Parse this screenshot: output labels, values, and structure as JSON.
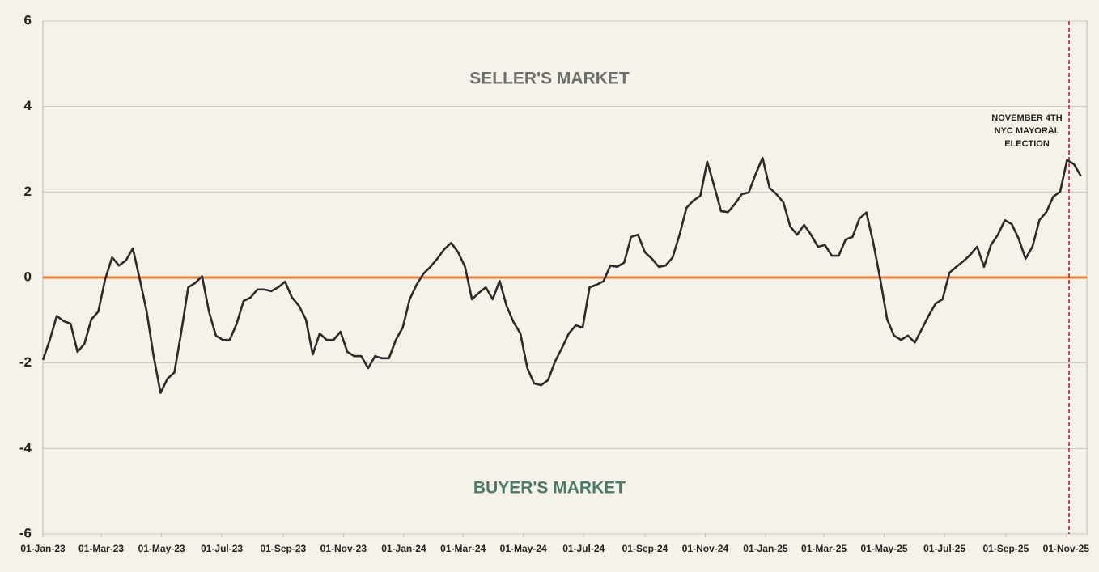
{
  "chart_data": {
    "type": "line",
    "series": [
      {
        "color": "#2b2b2b",
        "values": [
          -1.93,
          -1.46,
          -0.9,
          -1.02,
          -1.08,
          -1.74,
          -1.55,
          -0.98,
          -0.8,
          -0.04,
          0.47,
          0.28,
          0.4,
          0.68,
          -0.04,
          -0.8,
          -1.84,
          -2.7,
          -2.37,
          -2.22,
          -1.27,
          -0.23,
          -0.13,
          0.03,
          -0.8,
          -1.36,
          -1.46,
          -1.46,
          -1.08,
          -0.55,
          -0.47,
          -0.28,
          -0.28,
          -0.32,
          -0.23,
          -0.1,
          -0.47,
          -0.66,
          -0.98,
          -1.8,
          -1.31,
          -1.46,
          -1.46,
          -1.27,
          -1.74,
          -1.84,
          -1.84,
          -2.12,
          -1.84,
          -1.89,
          -1.89,
          -1.46,
          -1.17,
          -0.51,
          -0.17,
          0.09,
          0.25,
          0.44,
          0.66,
          0.81,
          0.59,
          0.25,
          -0.51,
          -0.36,
          -0.23,
          -0.51,
          -0.08,
          -0.66,
          -1.04,
          -1.31,
          -2.12,
          -2.48,
          -2.52,
          -2.4,
          -1.97,
          -1.65,
          -1.31,
          -1.12,
          -1.17,
          -0.23,
          -0.17,
          -0.09,
          0.28,
          0.25,
          0.35,
          0.95,
          1.0,
          0.59,
          0.44,
          0.25,
          0.28,
          0.47,
          1.0,
          1.63,
          1.8,
          1.91,
          2.71,
          2.14,
          1.55,
          1.53,
          1.72,
          1.95,
          1.99,
          2.42,
          2.8,
          2.1,
          1.95,
          1.76,
          1.19,
          1.0,
          1.23,
          1.0,
          0.72,
          0.76,
          0.51,
          0.51,
          0.89,
          0.95,
          1.38,
          1.52,
          0.81,
          -0.04,
          -0.98,
          -1.36,
          -1.46,
          -1.36,
          -1.52,
          -1.21,
          -0.89,
          -0.61,
          -0.51,
          0.11,
          0.25,
          0.38,
          0.53,
          0.72,
          0.25,
          0.76,
          1.0,
          1.34,
          1.25,
          0.91,
          0.44,
          0.72,
          1.34,
          1.53,
          1.89,
          2.01,
          2.75,
          2.65,
          2.37
        ]
      }
    ],
    "x": [
      "2023-01-01",
      "2023-01-08",
      "2023-01-15",
      "2023-01-22",
      "2023-01-29",
      "2023-02-05",
      "2023-02-12",
      "2023-02-19",
      "2023-02-26",
      "2023-03-05",
      "2023-03-12",
      "2023-03-19",
      "2023-03-26",
      "2023-04-02",
      "2023-04-09",
      "2023-04-16",
      "2023-04-23",
      "2023-04-30",
      "2023-05-07",
      "2023-05-14",
      "2023-05-21",
      "2023-05-28",
      "2023-06-04",
      "2023-06-11",
      "2023-06-18",
      "2023-06-25",
      "2023-07-02",
      "2023-07-09",
      "2023-07-16",
      "2023-07-23",
      "2023-07-30",
      "2023-08-06",
      "2023-08-13",
      "2023-08-20",
      "2023-08-27",
      "2023-09-03",
      "2023-09-10",
      "2023-09-17",
      "2023-09-24",
      "2023-10-01",
      "2023-10-08",
      "2023-10-15",
      "2023-10-22",
      "2023-10-29",
      "2023-11-05",
      "2023-11-12",
      "2023-11-19",
      "2023-11-26",
      "2023-12-03",
      "2023-12-10",
      "2023-12-17",
      "2023-12-24",
      "2023-12-31",
      "2024-01-07",
      "2024-01-14",
      "2024-01-21",
      "2024-01-28",
      "2024-02-04",
      "2024-02-11",
      "2024-02-18",
      "2024-02-25",
      "2024-03-03",
      "2024-03-10",
      "2024-03-17",
      "2024-03-24",
      "2024-03-31",
      "2024-04-07",
      "2024-04-14",
      "2024-04-21",
      "2024-04-28",
      "2024-05-05",
      "2024-05-12",
      "2024-05-19",
      "2024-05-26",
      "2024-06-02",
      "2024-06-09",
      "2024-06-16",
      "2024-06-23",
      "2024-06-30",
      "2024-07-07",
      "2024-07-14",
      "2024-07-21",
      "2024-07-28",
      "2024-08-04",
      "2024-08-11",
      "2024-08-18",
      "2024-08-25",
      "2024-09-01",
      "2024-09-08",
      "2024-09-15",
      "2024-09-22",
      "2024-09-29",
      "2024-10-06",
      "2024-10-13",
      "2024-10-20",
      "2024-10-27",
      "2024-11-03",
      "2024-11-10",
      "2024-11-17",
      "2024-11-24",
      "2024-12-01",
      "2024-12-08",
      "2024-12-15",
      "2024-12-22",
      "2024-12-29",
      "2025-01-05",
      "2025-01-12",
      "2025-01-19",
      "2025-01-26",
      "2025-02-02",
      "2025-02-09",
      "2025-02-16",
      "2025-02-23",
      "2025-03-02",
      "2025-03-09",
      "2025-03-16",
      "2025-03-23",
      "2025-03-30",
      "2025-04-06",
      "2025-04-13",
      "2025-04-20",
      "2025-04-27",
      "2025-05-04",
      "2025-05-11",
      "2025-05-18",
      "2025-05-25",
      "2025-06-01",
      "2025-06-08",
      "2025-06-15",
      "2025-06-22",
      "2025-06-29",
      "2025-07-06",
      "2025-07-13",
      "2025-07-20",
      "2025-07-27",
      "2025-08-03",
      "2025-08-10",
      "2025-08-17",
      "2025-08-24",
      "2025-08-31",
      "2025-09-07",
      "2025-09-14",
      "2025-09-21",
      "2025-09-28",
      "2025-10-05",
      "2025-10-12",
      "2025-10-19",
      "2025-10-26",
      "2025-11-02",
      "2025-11-09",
      "2025-11-16"
    ],
    "xlim": [
      "2023-01-01",
      "2025-11-22"
    ],
    "xticks": [
      {
        "value": "2023-01-01",
        "label": "01-Jan-23"
      },
      {
        "value": "2023-03-01",
        "label": "01-Mar-23"
      },
      {
        "value": "2023-05-01",
        "label": "01-May-23"
      },
      {
        "value": "2023-07-01",
        "label": "01-Jul-23"
      },
      {
        "value": "2023-09-01",
        "label": "01-Sep-23"
      },
      {
        "value": "2023-11-01",
        "label": "01-Nov-23"
      },
      {
        "value": "2024-01-01",
        "label": "01-Jan-24"
      },
      {
        "value": "2024-03-01",
        "label": "01-Mar-24"
      },
      {
        "value": "2024-05-01",
        "label": "01-May-24"
      },
      {
        "value": "2024-07-01",
        "label": "01-Jul-24"
      },
      {
        "value": "2024-09-01",
        "label": "01-Sep-24"
      },
      {
        "value": "2024-11-01",
        "label": "01-Nov-24"
      },
      {
        "value": "2025-01-01",
        "label": "01-Jan-25"
      },
      {
        "value": "2025-03-01",
        "label": "01-Mar-25"
      },
      {
        "value": "2025-05-01",
        "label": "01-May-25"
      },
      {
        "value": "2025-07-01",
        "label": "01-Jul-25"
      },
      {
        "value": "2025-09-01",
        "label": "01-Sep-25"
      },
      {
        "value": "2025-11-01",
        "label": "01-Nov-25"
      }
    ],
    "ylim": [
      -6,
      6
    ],
    "yticks": [
      -6,
      -4,
      -2,
      0,
      2,
      4,
      6
    ],
    "grid": true,
    "reference_line": {
      "y": 0,
      "color": "#ed7d31"
    },
    "region_labels": {
      "upper": "SELLER'S MARKET",
      "lower": "BUYER'S MARKET"
    },
    "event": {
      "x": "2025-11-04",
      "color": "#c8102e",
      "text": [
        "NOVEMBER 4TH",
        "NYC MAYORAL",
        "ELECTION"
      ]
    }
  }
}
